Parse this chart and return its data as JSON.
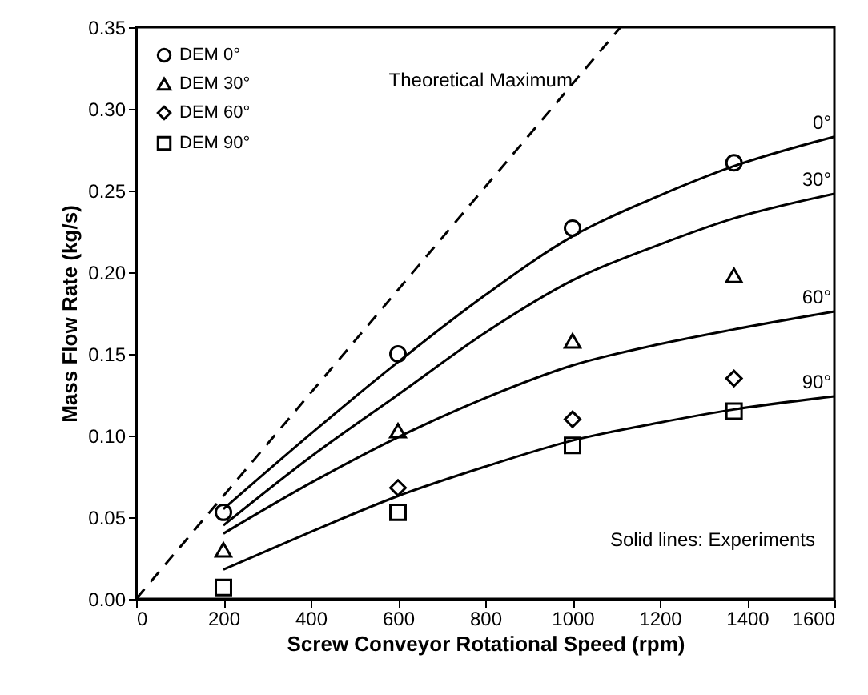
{
  "chart_data": {
    "type": "scatter",
    "xlabel": "Screw Conveyor Rotational Speed (rpm)",
    "ylabel": "Mass Flow Rate (kg/s)",
    "xlim": [
      0,
      1600
    ],
    "xticks": [
      0,
      200,
      400,
      600,
      800,
      1000,
      1200,
      1400,
      1600
    ],
    "ylim": [
      0,
      0.35
    ],
    "yticks": [
      {
        "value": 0,
        "label": "0.00"
      },
      {
        "value": 0.05,
        "label": "0.05"
      },
      {
        "value": 0.1,
        "label": "0.10"
      },
      {
        "value": 0.15,
        "label": "0.15"
      },
      {
        "value": 0.2,
        "label": "0.20"
      },
      {
        "value": 0.25,
        "label": "0.25"
      },
      {
        "value": 0.3,
        "label": "0.30"
      },
      {
        "value": 0.35,
        "label": "0.35"
      }
    ],
    "grid": false,
    "legend": "top left",
    "series": [
      {
        "name": "DEM 0°",
        "marker": "circle",
        "color": "#000000",
        "x": [
          200,
          600,
          1000,
          1370
        ],
        "values": [
          0.053,
          0.15,
          0.227,
          0.267
        ]
      },
      {
        "name": "DEM 30°",
        "marker": "triangle",
        "color": "#000000",
        "x": [
          200,
          600,
          1000,
          1370
        ],
        "values": [
          0.03,
          0.103,
          0.158,
          0.198
        ]
      },
      {
        "name": "DEM 60°",
        "marker": "diamond",
        "color": "#000000",
        "x": [
          600,
          1000,
          1370
        ],
        "values": [
          0.068,
          0.11,
          0.135
        ]
      },
      {
        "name": "DEM 90°",
        "marker": "square",
        "color": "#000000",
        "x": [
          200,
          600,
          1000,
          1370
        ],
        "values": [
          0.007,
          0.053,
          0.094,
          0.115
        ]
      },
      {
        "name": "0°",
        "type": "line",
        "line_style": "solid",
        "color": "#000000",
        "x": [
          200,
          400,
          600,
          800,
          1000,
          1200,
          1370,
          1600
        ],
        "values": [
          0.055,
          0.101,
          0.145,
          0.186,
          0.222,
          0.247,
          0.265,
          0.283
        ]
      },
      {
        "name": "30°",
        "type": "line",
        "line_style": "solid",
        "color": "#000000",
        "x": [
          200,
          400,
          600,
          800,
          1000,
          1200,
          1370,
          1600
        ],
        "values": [
          0.045,
          0.087,
          0.125,
          0.163,
          0.195,
          0.217,
          0.233,
          0.248
        ]
      },
      {
        "name": "60°",
        "type": "line",
        "line_style": "solid",
        "color": "#000000",
        "x": [
          200,
          400,
          600,
          800,
          1000,
          1200,
          1370,
          1600
        ],
        "values": [
          0.04,
          0.071,
          0.099,
          0.123,
          0.143,
          0.156,
          0.165,
          0.176
        ]
      },
      {
        "name": "90°",
        "type": "line",
        "line_style": "solid",
        "color": "#000000",
        "x": [
          200,
          400,
          600,
          800,
          1000,
          1200,
          1370,
          1600
        ],
        "values": [
          0.018,
          0.041,
          0.063,
          0.081,
          0.097,
          0.108,
          0.116,
          0.124
        ]
      },
      {
        "name": "Theoretical Maximum",
        "type": "line",
        "line_style": "dashed",
        "color": "#000000",
        "x": [
          0,
          1110
        ],
        "values": [
          0,
          0.35
        ]
      }
    ],
    "annotations": [
      "Solid lines:  Experiments"
    ]
  }
}
